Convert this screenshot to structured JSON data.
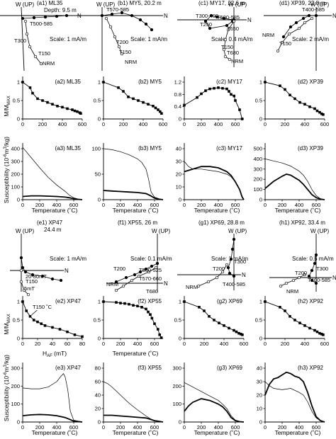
{
  "figure": {
    "ylabel_mag": "M/M",
    "ylabel_mag_sub": "MAX",
    "ylabel_sus": "Susceptibility (10",
    "ylabel_sus_exp": "-6",
    "ylabel_sus_unit": "m",
    "ylabel_sus_exp2": "3",
    "ylabel_sus_tail": "/kg)",
    "xlabel_temp": "Temperature (˚C)",
    "xlabel_af": "H",
    "xlabel_af_sub": "AF",
    "xlabel_af_unit": " (mT)",
    "axis_w": "W (UP)",
    "axis_n": "N"
  },
  "zijder": [
    {
      "id": "a1",
      "title": "(a1) ML35",
      "subtitle": "Depth: 9.5 m",
      "scale": "Scale: 1 mA/m",
      "labels": [
        "T500-585",
        "T300",
        "T150",
        "NRM"
      ]
    },
    {
      "id": "b1",
      "title": "(b1) MY5, 20.2 m",
      "subtitle": "",
      "scale": "Scale: 1 mA/m",
      "labels": [
        "T570-585",
        "T200",
        "T150",
        "NRM"
      ]
    },
    {
      "id": "c1",
      "title": "(c1) MY17, 22.6 m",
      "subtitle": "",
      "scale": "Scale: 0.4 mA/m",
      "labels": [
        "T300-400",
        "T500-585",
        "T250",
        "T650",
        "T150",
        "T680",
        "NRM"
      ]
    },
    {
      "id": "d1",
      "title": "(d1) XP39, 22.8 m",
      "subtitle": "",
      "scale": "Scale: 2 mA/m",
      "labels": [
        "T400-585",
        "T150",
        "NRM"
      ]
    },
    {
      "id": "e1",
      "title": "(e1) XP47",
      "subtitle": "24.4 m",
      "scale": "Scale: 1 mA/m",
      "labels": [
        "20-80mT",
        "T150",
        "5mT"
      ]
    },
    {
      "id": "f1",
      "title": "(f1) XP55, 26 m",
      "subtitle": "",
      "scale": "Scale: 0.1 mA/m",
      "labels": [
        "T200",
        "T500-525",
        "T570-660",
        "NRM",
        "T680"
      ]
    },
    {
      "id": "g1",
      "title": "(g1) XP69, 28.8 m",
      "subtitle": "",
      "scale": "Scale: 1 mA/m",
      "labels": [
        "T300",
        "T200",
        "T400-585",
        "NRM"
      ]
    },
    {
      "id": "h1",
      "title": "(h1) XP92, 33.4 m",
      "subtitle": "",
      "scale": "Scale: 0.5 mA/m",
      "labels": [
        "T300",
        "T200",
        "T400-585",
        "NRM"
      ]
    }
  ],
  "chart_data": [
    {
      "id": "a2",
      "type": "line",
      "title": "(a2) ML35",
      "x": [
        0,
        75,
        100,
        150,
        200,
        250,
        300,
        350,
        400,
        450,
        500,
        525,
        550,
        575,
        585
      ],
      "values": [
        1.0,
        0.85,
        0.7,
        0.55,
        0.5,
        0.45,
        0.4,
        0.35,
        0.32,
        0.28,
        0.25,
        0.22,
        0.2,
        0.17,
        0.15
      ],
      "xlim": [
        0,
        600
      ],
      "ylim": [
        0,
        1
      ],
      "xticks": [
        0,
        200,
        400,
        600
      ],
      "yticks": [
        0,
        0.5,
        1
      ]
    },
    {
      "id": "b2",
      "type": "line",
      "title": "(b2) MY5",
      "x": [
        0,
        150,
        200,
        250,
        300,
        350,
        400,
        450,
        500,
        525,
        550,
        570,
        585
      ],
      "values": [
        1.0,
        0.85,
        0.75,
        0.6,
        0.55,
        0.5,
        0.45,
        0.4,
        0.35,
        0.3,
        0.25,
        0.2,
        0.15
      ],
      "xlim": [
        0,
        600
      ],
      "ylim": [
        0,
        1
      ],
      "xticks": [
        0,
        200,
        400,
        600
      ],
      "yticks": [
        0,
        0.5,
        1
      ]
    },
    {
      "id": "c2",
      "type": "line",
      "title": "(c2) MY17",
      "x": [
        0,
        150,
        200,
        250,
        300,
        350,
        400,
        450,
        500,
        525,
        550,
        585,
        600,
        650,
        680
      ],
      "values": [
        0.45,
        0.7,
        0.82,
        0.92,
        0.98,
        1.0,
        1.02,
        1.0,
        0.98,
        0.9,
        0.8,
        0.75,
        0.6,
        0.3,
        0.0
      ],
      "xlim": [
        0,
        700
      ],
      "ylim": [
        0,
        1.2
      ],
      "xticks": [
        0,
        200,
        400,
        600
      ],
      "yticks": [
        0,
        0.4,
        0.8,
        1.2
      ]
    },
    {
      "id": "d2",
      "type": "line",
      "title": "(d2) XP39",
      "x": [
        0,
        150,
        200,
        250,
        300,
        350,
        400,
        450,
        500,
        525,
        550,
        570,
        585
      ],
      "values": [
        1.0,
        0.9,
        0.8,
        0.65,
        0.55,
        0.45,
        0.4,
        0.33,
        0.28,
        0.22,
        0.18,
        0.14,
        0.12
      ],
      "xlim": [
        0,
        600
      ],
      "ylim": [
        0,
        1
      ],
      "xticks": [
        0,
        200,
        400,
        600
      ],
      "yticks": [
        0,
        0.5,
        1
      ]
    },
    {
      "id": "a3",
      "type": "line",
      "title": "(a3) ML35",
      "series": [
        {
          "x": [
            0,
            100,
            200,
            300,
            400,
            500,
            550,
            600,
            650,
            700
          ],
          "values": [
            410,
            330,
            250,
            175,
            115,
            65,
            35,
            15,
            5,
            0
          ],
          "bold": false
        },
        {
          "x": [
            0,
            100,
            200,
            300,
            400,
            500,
            550,
            600,
            650,
            700
          ],
          "values": [
            25,
            30,
            30,
            28,
            25,
            20,
            15,
            8,
            3,
            0
          ],
          "bold": true
        }
      ],
      "xlim": [
        0,
        700
      ],
      "ylim": [
        0,
        400
      ],
      "xticks": [
        0,
        200,
        400,
        600
      ],
      "yticks": [
        0,
        100,
        200,
        300,
        400
      ]
    },
    {
      "id": "b3",
      "type": "line",
      "title": "(b3) MY5",
      "series": [
        {
          "x": [
            0,
            100,
            200,
            300,
            400,
            450,
            500,
            530,
            560,
            600,
            650,
            700
          ],
          "values": [
            100,
            98,
            94,
            88,
            80,
            73,
            60,
            40,
            15,
            5,
            2,
            0
          ],
          "bold": false
        },
        {
          "x": [
            0,
            100,
            200,
            300,
            400,
            500,
            550,
            600,
            650,
            700
          ],
          "values": [
            18,
            17,
            16,
            15,
            14,
            12,
            8,
            3,
            1,
            0
          ],
          "bold": true
        }
      ],
      "xlim": [
        0,
        700
      ],
      "ylim": [
        0,
        100
      ],
      "xticks": [
        0,
        200,
        400,
        600
      ],
      "yticks": [
        0,
        50,
        100
      ]
    },
    {
      "id": "c3",
      "type": "line",
      "title": "(c3) MY17",
      "series": [
        {
          "x": [
            0,
            50,
            100,
            200,
            300,
            400,
            500,
            550,
            600,
            650,
            680,
            700
          ],
          "values": [
            30,
            26,
            24,
            24,
            23,
            22,
            20,
            18,
            14,
            8,
            2,
            0
          ],
          "bold": false
        },
        {
          "x": [
            0,
            50,
            100,
            200,
            300,
            400,
            500,
            550,
            600,
            650,
            680,
            700
          ],
          "values": [
            22,
            23,
            24,
            26,
            26,
            25,
            22,
            19,
            14,
            8,
            2,
            0
          ],
          "bold": true
        }
      ],
      "xlim": [
        0,
        700
      ],
      "ylim": [
        0,
        40
      ],
      "xticks": [
        0,
        200,
        400,
        600
      ],
      "yticks": [
        0,
        10,
        20,
        30,
        40
      ]
    },
    {
      "id": "d3",
      "type": "line",
      "title": "(d3) XP39",
      "series": [
        {
          "x": [
            0,
            100,
            200,
            300,
            400,
            450,
            500,
            550,
            600,
            650,
            700
          ],
          "values": [
            400,
            380,
            360,
            330,
            280,
            240,
            180,
            100,
            40,
            10,
            0
          ],
          "bold": false
        },
        {
          "x": [
            0,
            100,
            200,
            250,
            300,
            400,
            450,
            500,
            550,
            600,
            650,
            700
          ],
          "values": [
            110,
            180,
            230,
            250,
            240,
            190,
            150,
            100,
            50,
            20,
            5,
            0
          ],
          "bold": true
        }
      ],
      "xlim": [
        0,
        700
      ],
      "ylim": [
        0,
        500
      ],
      "xticks": [
        0,
        200,
        400,
        600
      ],
      "yticks": [
        0,
        100,
        200,
        300,
        400,
        500
      ]
    },
    {
      "id": "e2",
      "type": "line",
      "title": "(e2) XP47",
      "annotation": "T150 ˚C",
      "x": [
        0,
        5,
        10,
        15,
        20,
        25,
        30,
        40,
        50,
        60,
        70,
        80
      ],
      "values": [
        1.0,
        0.75,
        0.6,
        0.5,
        0.45,
        0.4,
        0.35,
        0.3,
        0.25,
        0.18,
        0.1,
        0.05
      ],
      "xlim": [
        0,
        80
      ],
      "ylim": [
        0,
        1
      ],
      "xticks": [
        0,
        20,
        40,
        60,
        80
      ],
      "yticks": [
        0,
        0.5,
        1
      ]
    },
    {
      "id": "f2",
      "type": "line",
      "title": "(f2) XP55",
      "x": [
        0,
        150,
        200,
        250,
        300,
        350,
        400,
        450,
        500,
        525,
        550,
        570,
        600,
        640,
        660,
        680
      ],
      "values": [
        1.0,
        0.98,
        0.96,
        0.95,
        0.93,
        0.9,
        0.88,
        0.85,
        0.8,
        0.72,
        0.65,
        0.55,
        0.4,
        0.25,
        0.1,
        0.02
      ],
      "xlim": [
        0,
        700
      ],
      "ylim": [
        0,
        1
      ],
      "xticks": [
        0,
        200,
        400,
        600
      ],
      "yticks": [
        0,
        0.5,
        1
      ]
    },
    {
      "id": "g2",
      "type": "line",
      "title": "(g2) XP69",
      "x": [
        0,
        150,
        200,
        250,
        300,
        350,
        400,
        450,
        500,
        525,
        550,
        570,
        585
      ],
      "values": [
        1.0,
        0.85,
        0.75,
        0.6,
        0.5,
        0.42,
        0.35,
        0.28,
        0.22,
        0.18,
        0.14,
        0.12,
        0.1
      ],
      "xlim": [
        0,
        600
      ],
      "ylim": [
        0,
        1
      ],
      "xticks": [
        0,
        200,
        400,
        600
      ],
      "yticks": [
        0,
        0.5,
        1
      ]
    },
    {
      "id": "h2",
      "type": "line",
      "title": "(h2) XP92",
      "x": [
        0,
        150,
        200,
        250,
        300,
        350,
        400,
        450,
        500,
        525,
        550,
        570,
        585
      ],
      "values": [
        1.0,
        0.85,
        0.75,
        0.6,
        0.5,
        0.42,
        0.35,
        0.28,
        0.22,
        0.18,
        0.14,
        0.12,
        0.1
      ],
      "xlim": [
        0,
        600
      ],
      "ylim": [
        0,
        1
      ],
      "xticks": [
        0,
        200,
        400,
        600
      ],
      "yticks": [
        0,
        0.5,
        1
      ]
    },
    {
      "id": "e3",
      "type": "line",
      "title": "(e3) XP47",
      "series": [
        {
          "x": [
            0,
            100,
            200,
            300,
            400,
            450,
            480,
            500,
            530,
            560,
            600,
            700
          ],
          "values": [
            190,
            185,
            185,
            195,
            225,
            255,
            270,
            250,
            180,
            60,
            10,
            0
          ],
          "bold": false
        },
        {
          "x": [
            0,
            100,
            200,
            300,
            400,
            450,
            500,
            550,
            600,
            700
          ],
          "values": [
            35,
            40,
            42,
            40,
            35,
            30,
            25,
            15,
            5,
            0
          ],
          "bold": true
        }
      ],
      "xlim": [
        0,
        700
      ],
      "ylim": [
        0,
        300
      ],
      "xticks": [
        0,
        200,
        400,
        600
      ],
      "yticks": [
        0,
        100,
        200,
        300
      ]
    },
    {
      "id": "f3",
      "type": "line",
      "title": "(f3) XP55",
      "series": [
        {
          "x": [
            0,
            50,
            100,
            200,
            300,
            400,
            500,
            550,
            600,
            650,
            700
          ],
          "values": [
            60,
            57,
            52,
            40,
            28,
            18,
            9,
            5,
            2,
            1,
            0
          ],
          "bold": false
        },
        {
          "x": [
            0,
            100,
            200,
            300,
            400,
            500,
            550,
            600,
            650,
            700
          ],
          "values": [
            10,
            10,
            9,
            8,
            7,
            6,
            4,
            2,
            1,
            0
          ],
          "bold": true
        }
      ],
      "xlim": [
        0,
        700
      ],
      "ylim": [
        0,
        80
      ],
      "xticks": [
        0,
        200,
        400,
        600
      ],
      "yticks": [
        0,
        20,
        40,
        60,
        80
      ]
    },
    {
      "id": "g3",
      "type": "line",
      "title": "(g3) XP69",
      "series": [
        {
          "x": [
            0,
            100,
            200,
            300,
            400,
            450,
            500,
            550,
            600,
            650,
            700
          ],
          "values": [
            220,
            195,
            170,
            145,
            120,
            100,
            75,
            35,
            10,
            3,
            0
          ],
          "bold": false
        },
        {
          "x": [
            0,
            50,
            100,
            200,
            300,
            400,
            450,
            500,
            550,
            600,
            650,
            700
          ],
          "values": [
            60,
            90,
            110,
            130,
            120,
            100,
            85,
            60,
            25,
            8,
            2,
            0
          ],
          "bold": true
        }
      ],
      "xlim": [
        0,
        700
      ],
      "ylim": [
        0,
        300
      ],
      "xticks": [
        0,
        200,
        400,
        600
      ],
      "yticks": [
        0,
        100,
        200,
        300
      ]
    },
    {
      "id": "h3",
      "type": "line",
      "title": "(h3) XP92",
      "series": [
        {
          "x": [
            0,
            50,
            100,
            200,
            300,
            400,
            450,
            500,
            550,
            600,
            650,
            700
          ],
          "values": [
            30,
            27,
            25,
            24,
            25,
            22,
            20,
            15,
            8,
            3,
            1,
            0
          ],
          "bold": false
        },
        {
          "x": [
            0,
            50,
            100,
            150,
            200,
            250,
            300,
            350,
            400,
            450,
            500,
            550,
            600,
            650,
            700
          ],
          "values": [
            20,
            28,
            32,
            33,
            35,
            37,
            36,
            34,
            33,
            30,
            22,
            12,
            4,
            1,
            0
          ],
          "bold": true
        }
      ],
      "xlim": [
        0,
        700
      ],
      "ylim": [
        0,
        40
      ],
      "xticks": [
        0,
        200,
        400,
        600
      ],
      "yticks": [
        0,
        10,
        20,
        30,
        40
      ]
    }
  ]
}
